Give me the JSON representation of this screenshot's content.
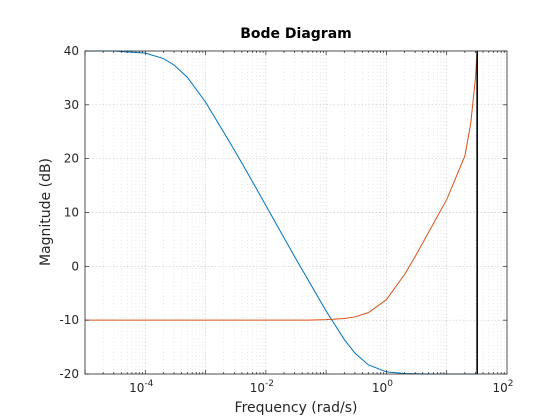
{
  "chart_data": {
    "type": "line",
    "title": "Bode Diagram",
    "xlabel": "Frequency  (rad/s)",
    "ylabel": "Magnitude (dB)",
    "xscale": "log",
    "xlim": [
      1e-05,
      100
    ],
    "ylim": [
      -20,
      40
    ],
    "grid": "major-and-minor dotted",
    "xticks": [
      {
        "value": 0.0001,
        "base": "10",
        "exp": "-4"
      },
      {
        "value": 0.01,
        "base": "10",
        "exp": "-2"
      },
      {
        "value": 1,
        "base": "10",
        "exp": "0"
      },
      {
        "value": 100,
        "base": "10",
        "exp": "2"
      }
    ],
    "yticks": [
      -20,
      -10,
      0,
      10,
      20,
      30,
      40
    ],
    "vertical_line": {
      "x": 32,
      "color": "#000000"
    },
    "series": [
      {
        "color": "#0072BD",
        "x": [
          1e-05,
          3e-05,
          0.0001,
          0.0002,
          0.0003,
          0.0005,
          0.001,
          0.002,
          0.003,
          0.005,
          0.01,
          0.02,
          0.03,
          0.05,
          0.1,
          0.2,
          0.3,
          0.5,
          1,
          2,
          5,
          10,
          32
        ],
        "y": [
          40,
          40,
          39.6,
          38.6,
          37.4,
          35.1,
          30.5,
          24.9,
          21.6,
          17.3,
          11.3,
          5.3,
          1.8,
          -2.5,
          -8.3,
          -13.6,
          -16.1,
          -18.3,
          -19.6,
          -19.9,
          -20,
          -20,
          -20
        ]
      },
      {
        "color": "#D95319",
        "x": [
          1e-05,
          0.0001,
          0.001,
          0.01,
          0.03,
          0.05,
          0.1,
          0.2,
          0.3,
          0.5,
          1,
          2,
          3,
          5,
          10,
          20,
          25,
          30,
          32
        ],
        "y": [
          -10,
          -10,
          -10,
          -10,
          -10,
          -10,
          -9.9,
          -9.7,
          -9.4,
          -8.6,
          -6.2,
          -1.5,
          1.8,
          6.3,
          12.4,
          20.5,
          26.5,
          35,
          40
        ]
      }
    ]
  }
}
